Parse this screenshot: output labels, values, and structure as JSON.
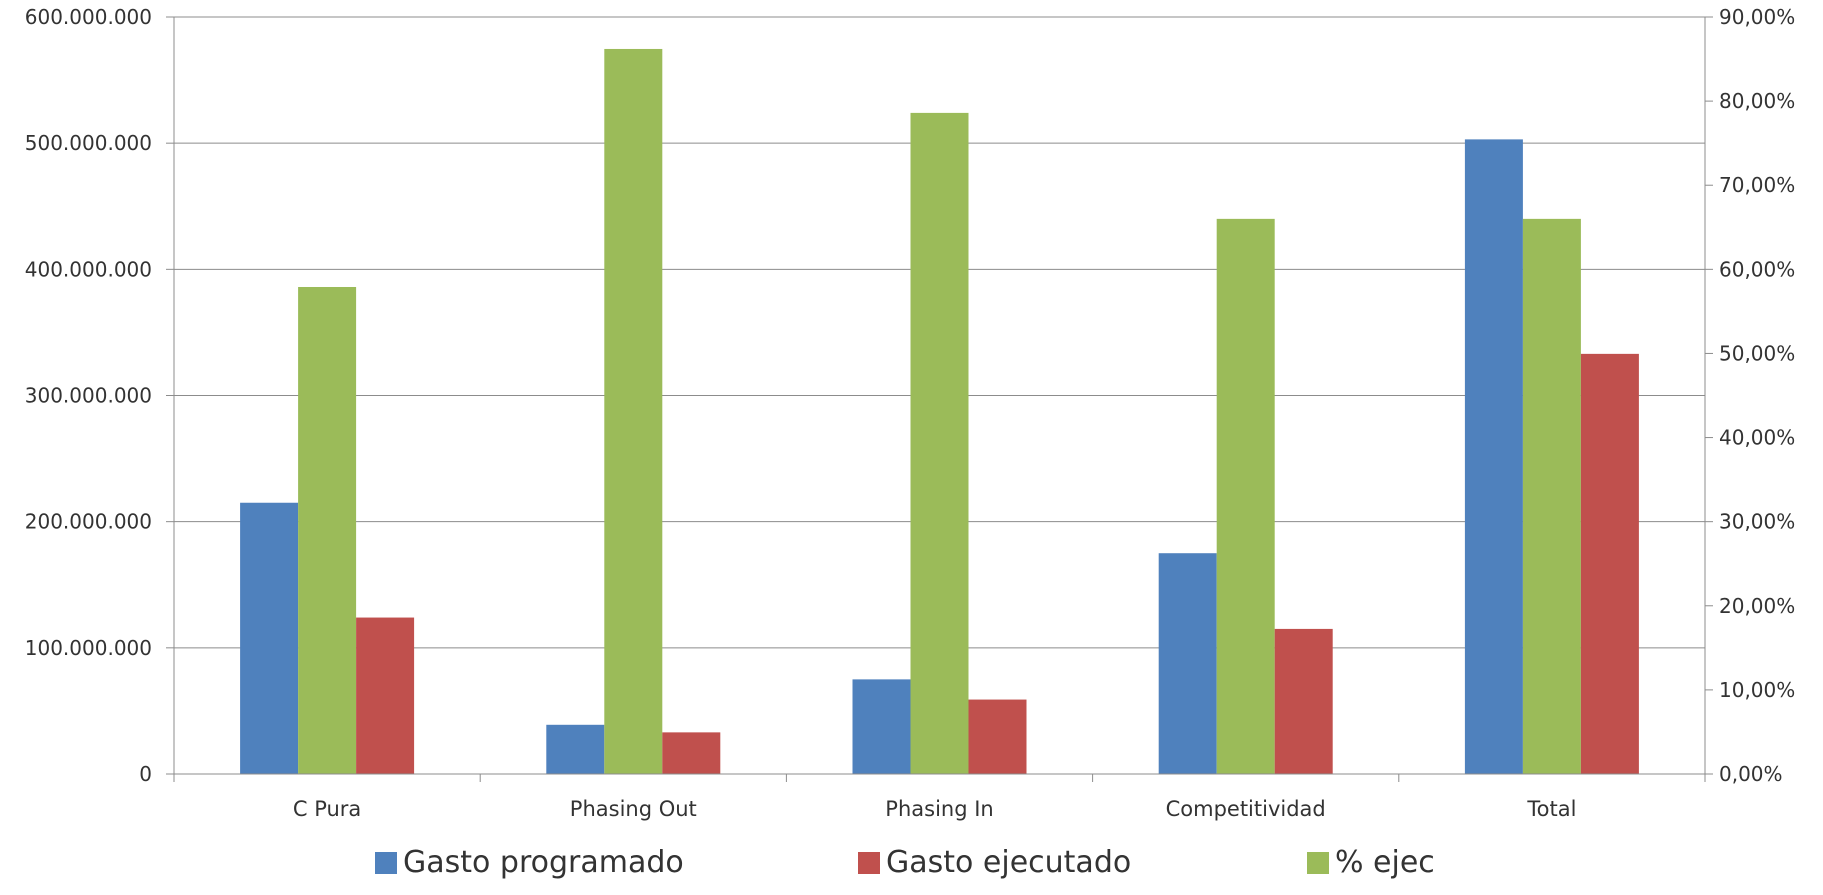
{
  "chart_data": {
    "type": "bar",
    "categories": [
      "C Pura",
      "Phasing Out",
      "Phasing In",
      "Competitividad",
      "Total"
    ],
    "series": [
      {
        "name": "Gasto programado",
        "axis": "left",
        "color": "#4F81BD",
        "values": [
          215000000,
          39000000,
          75000000,
          175000000,
          503000000
        ]
      },
      {
        "name": "% ejec",
        "axis": "right",
        "color": "#9BBB59",
        "values": [
          0.579,
          0.862,
          0.786,
          0.66,
          0.66
        ]
      },
      {
        "name": "Gasto ejecutado",
        "axis": "left",
        "color": "#C0504D",
        "values": [
          124000000,
          33000000,
          59000000,
          115000000,
          333000000
        ]
      }
    ],
    "legend_order": [
      "Gasto programado",
      "Gasto ejecutado",
      "% ejec"
    ],
    "left_axis": {
      "ylim": [
        0,
        600000000
      ],
      "ticks": [
        "0",
        "100.000.000",
        "200.000.000",
        "300.000.000",
        "400.000.000",
        "500.000.000",
        "600.000.000"
      ]
    },
    "right_axis": {
      "ylim": [
        0,
        0.9
      ],
      "ticks": [
        "0,00%",
        "10,00%",
        "20,00%",
        "30,00%",
        "40,00%",
        "50,00%",
        "60,00%",
        "70,00%",
        "80,00%",
        "90,00%"
      ]
    },
    "grid": true,
    "legend_position": "bottom"
  }
}
